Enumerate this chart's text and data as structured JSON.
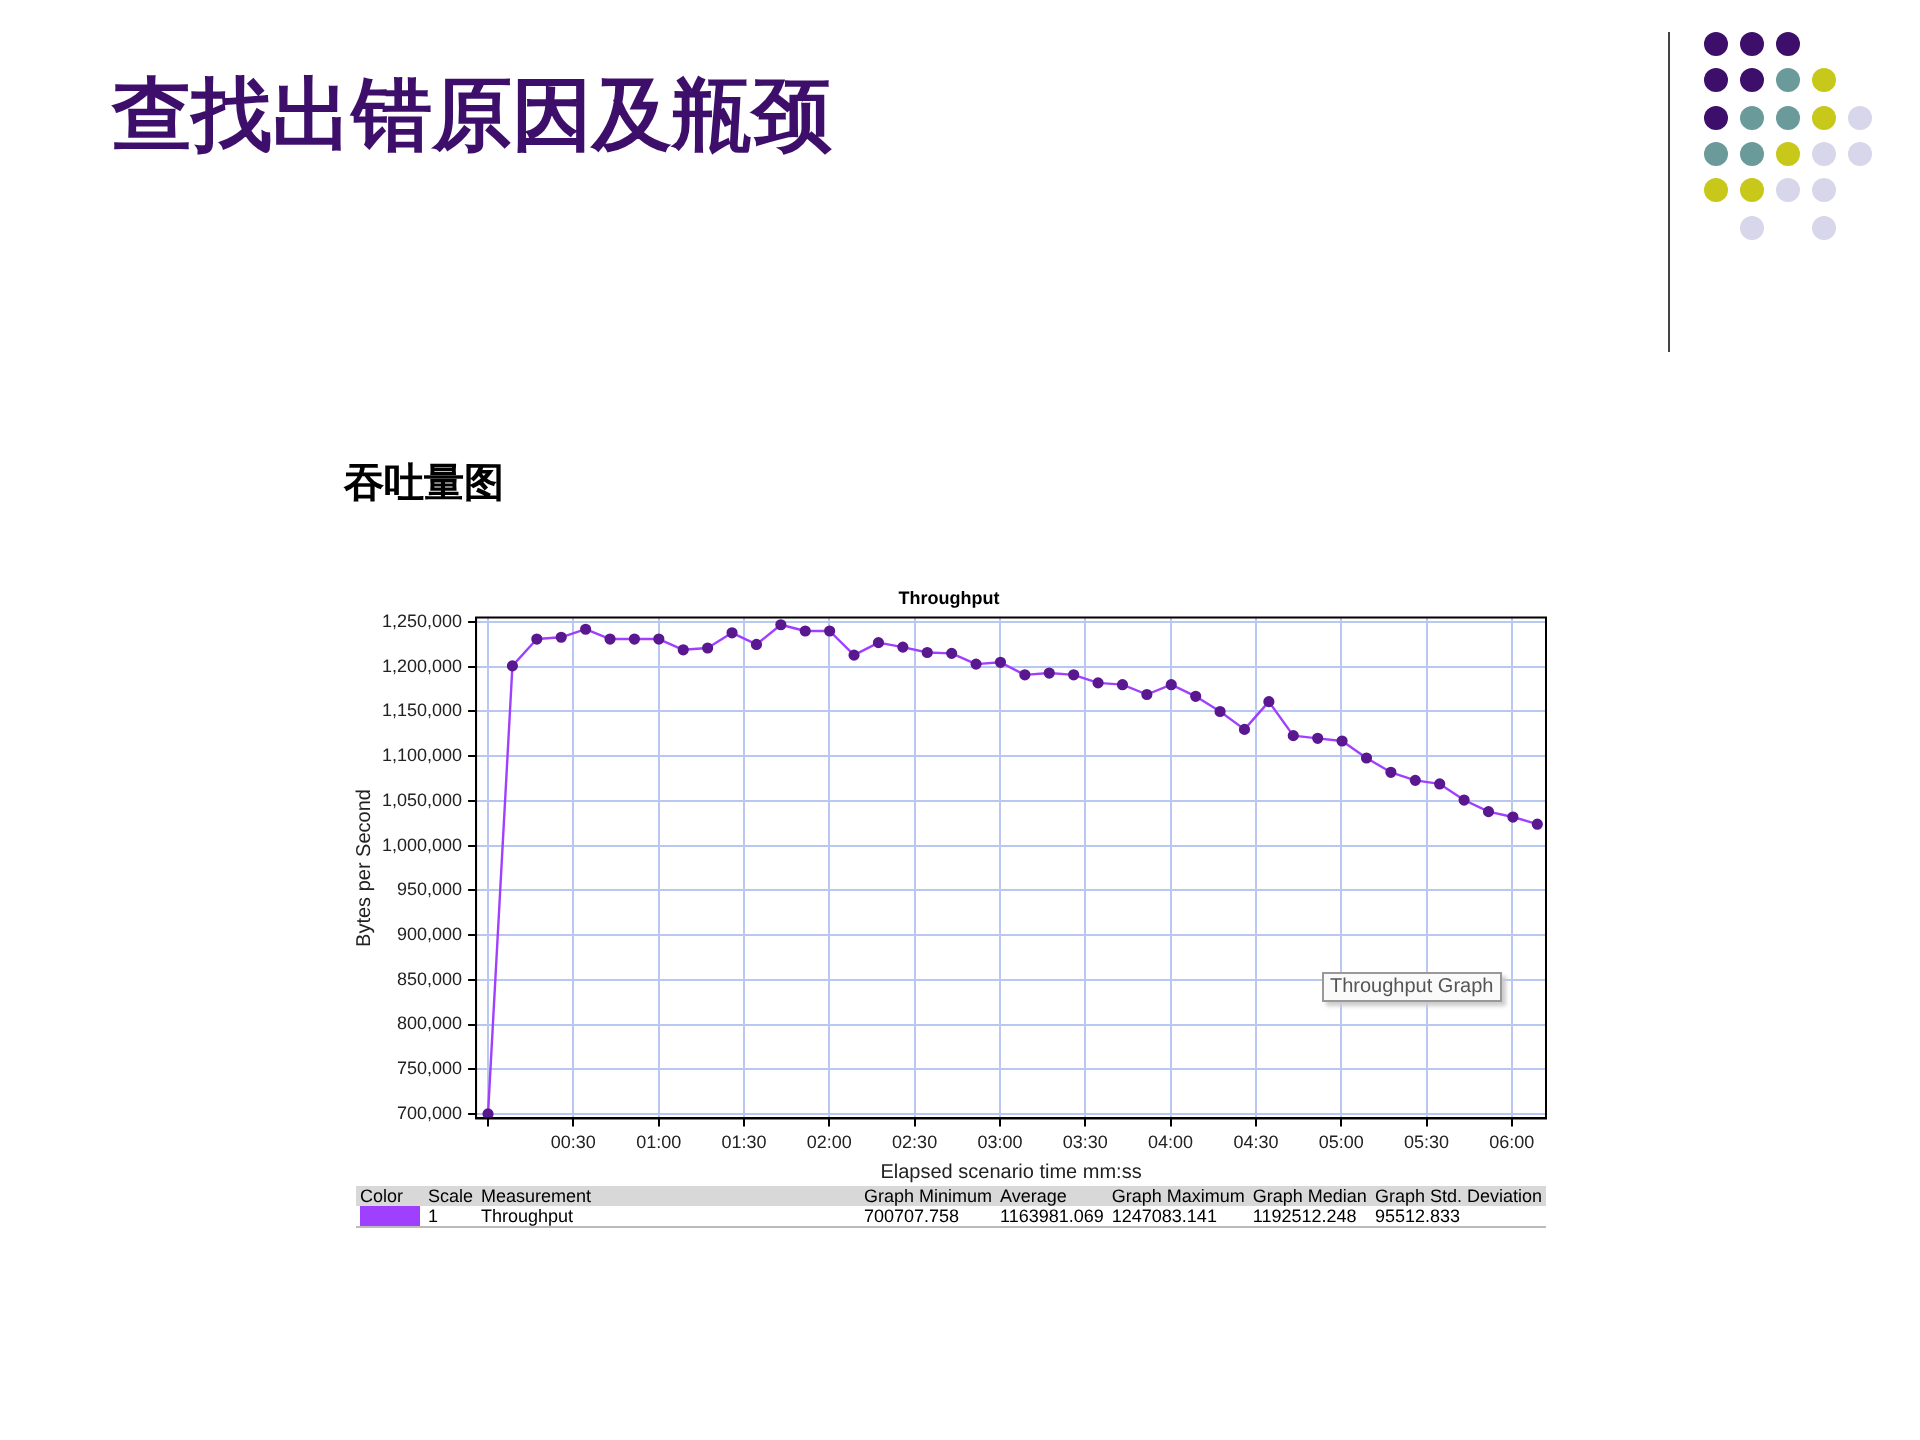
{
  "chart_data": {
    "type": "line",
    "title": "查找出错原因及瓶颈",
    "subtitle": "吞吐量图",
    "xlabel": "Elapsed scenario time mm:ss",
    "ylabel": "Bytes per Second",
    "annotations": [
      "Throughput",
      "Throughput Graph",
      "Color",
      "Scale",
      "Measurement",
      "Graph Minimum",
      "Average",
      "Graph Maximum",
      "Graph Median",
      "Graph Std. Deviation",
      "1",
      "700707.758",
      "1163981.069",
      "1247083.141",
      "1192512.248",
      "95512.833"
    ],
    "x": [
      0,
      0.143,
      0.286,
      0.429,
      0.572,
      0.715,
      0.858,
      1.001,
      1.144,
      1.287,
      1.43,
      1.573,
      1.716,
      1.859,
      2.002,
      2.145,
      2.288,
      2.431,
      2.574,
      2.717,
      2.86,
      3.003,
      3.146,
      3.289,
      3.432,
      3.575,
      3.718,
      3.861,
      4.004,
      4.147,
      4.29,
      4.433,
      4.576,
      4.719,
      4.862,
      5.005,
      5.148,
      5.291,
      5.434,
      5.577,
      5.72,
      5.863,
      6.006,
      6.149
    ],
    "series": [
      {
        "name": "Throughput",
        "color": "#a040ff",
        "values": [
          700000,
          1201000,
          1231000,
          1233000,
          1242000,
          1231000,
          1231000,
          1231000,
          1219000,
          1221000,
          1238000,
          1225000,
          1247000,
          1240000,
          1240000,
          1213000,
          1227000,
          1222000,
          1216000,
          1215000,
          1203000,
          1205000,
          1191000,
          1193000,
          1191000,
          1182000,
          1180000,
          1169000,
          1180000,
          1167000,
          1150000,
          1130000,
          1161000,
          1123000,
          1120000,
          1117000,
          1098000,
          1082000,
          1073000,
          1069000,
          1051000,
          1038000,
          1032000,
          1024000
        ]
      }
    ],
    "xlim": [
      -0.07,
      6.2
    ],
    "ylim": [
      695000,
      1255000
    ],
    "xticks": [
      {
        "value": 0,
        "label": null
      },
      {
        "value": 0.5,
        "label": "00:30"
      },
      {
        "value": 1,
        "label": "01:00"
      },
      {
        "value": 1.5,
        "label": "01:30"
      },
      {
        "value": 2,
        "label": "02:00"
      },
      {
        "value": 2.5,
        "label": "02:30"
      },
      {
        "value": 3,
        "label": "03:00"
      },
      {
        "value": 3.5,
        "label": "03:30"
      },
      {
        "value": 4,
        "label": "04:00"
      },
      {
        "value": 4.5,
        "label": "04:30"
      },
      {
        "value": 5,
        "label": "05:00"
      },
      {
        "value": 5.5,
        "label": "05:30"
      },
      {
        "value": 6,
        "label": "06:00"
      }
    ],
    "yticks": [
      {
        "value": 700000,
        "label": "700,000"
      },
      {
        "value": 750000,
        "label": "750,000"
      },
      {
        "value": 800000,
        "label": "800,000"
      },
      {
        "value": 850000,
        "label": "850,000"
      },
      {
        "value": 900000,
        "label": "900,000"
      },
      {
        "value": 950000,
        "label": "950,000"
      },
      {
        "value": 1000000,
        "label": "1,000,000"
      },
      {
        "value": 1050000,
        "label": "1,050,000"
      },
      {
        "value": 1100000,
        "label": "1,100,000"
      },
      {
        "value": 1150000,
        "label": "1,150,000"
      },
      {
        "value": 1200000,
        "label": "1,200,000"
      },
      {
        "value": 1250000,
        "label": "1,250,000"
      }
    ],
    "grid": true,
    "legend": "bottom",
    "marker": "circle",
    "line_style": "solid"
  }
}
